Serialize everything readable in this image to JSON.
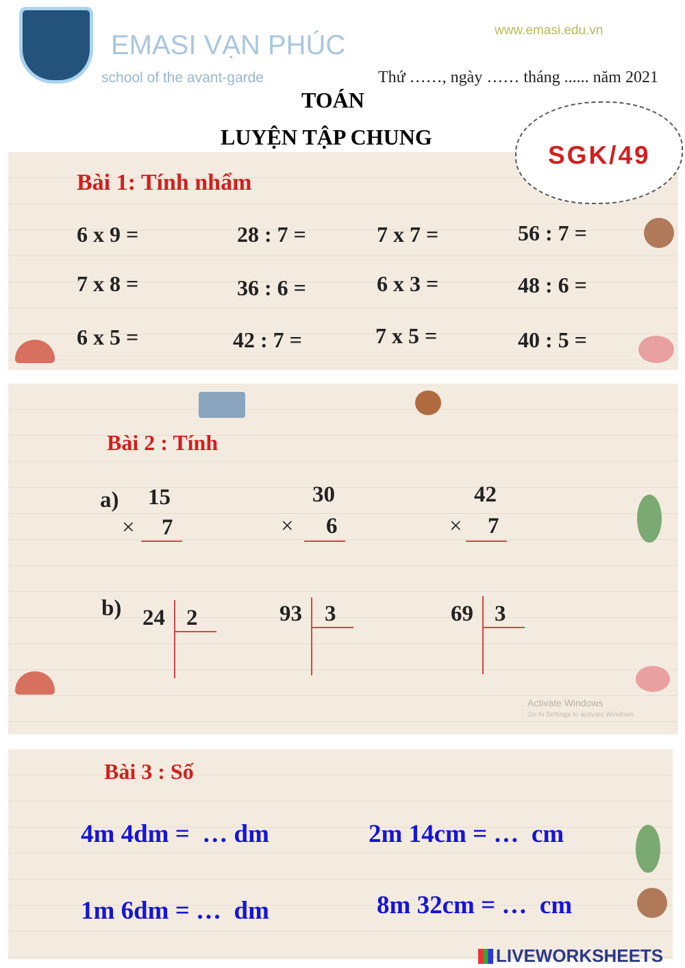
{
  "header": {
    "school": "EMASI VẠN PHÚC",
    "slogan": "school of the avant-garde",
    "website": "www.emasi.edu.vn",
    "date_line": "Thứ ……, ngày …… tháng ...... năm 2021",
    "subject": "TOÁN",
    "lesson": "LUYỆN TẬP CHUNG",
    "badge": "SGK/49"
  },
  "bai1": {
    "title": "Bài 1: Tính nhẩm",
    "rows": [
      [
        "6 x 9 =",
        "28 : 7 =",
        "7 x 7 =",
        "56 : 7 ="
      ],
      [
        "7 x 8 =",
        "36 : 6 =",
        "6 x 3 =",
        "48 : 6 ="
      ],
      [
        "6 x 5 =",
        "42 : 7 =",
        "7 x 5 =",
        "40 : 5 ="
      ]
    ]
  },
  "bai2": {
    "title": "Bài 2 : Tính",
    "a_label": "a)",
    "b_label": "b)",
    "times": "×",
    "mult": [
      {
        "top": "15",
        "bottom": "7"
      },
      {
        "top": "30",
        "bottom": "6"
      },
      {
        "top": "42",
        "bottom": "7"
      }
    ],
    "div": [
      {
        "dividend": "24",
        "divisor": "2"
      },
      {
        "dividend": "93",
        "divisor": "3"
      },
      {
        "dividend": "69",
        "divisor": "3"
      }
    ]
  },
  "watermark": {
    "line1": "Activate Windows",
    "line2": "Go to Settings to activate Windows."
  },
  "bai3": {
    "title": "Bài 3 : Số",
    "items": [
      "4m 4dm =  … dm",
      "2m 14cm = …  cm",
      "1m 6dm = …  dm",
      "8m 32cm = …  cm"
    ]
  },
  "footer": {
    "brand": "LIVEWORKSHEETS"
  },
  "colors": {
    "red": "#d21f1f",
    "blue": "#1515d8",
    "panel": "#f4ebe0"
  }
}
